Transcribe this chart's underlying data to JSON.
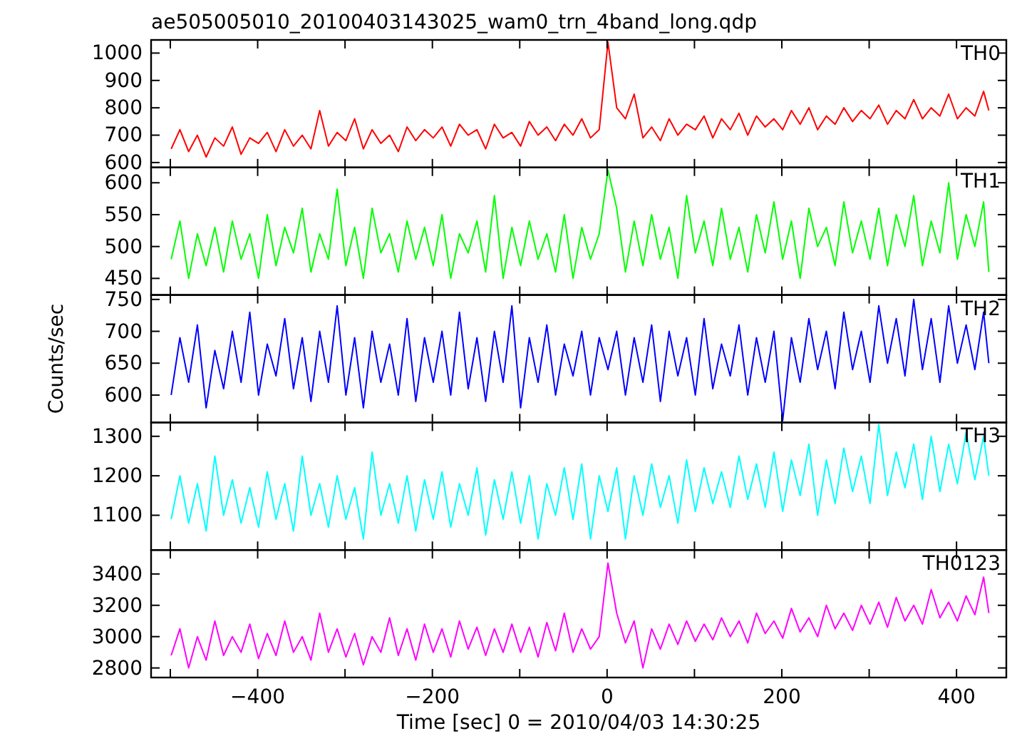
{
  "chart_data": [
    {
      "type": "line",
      "title": "ae505005010_20100403143025_wam0_trn_4band_long.qdp",
      "tick_labels": "y",
      "x": [
        -499,
        -489,
        -479,
        -469,
        -459,
        -449,
        -439,
        -429,
        -419,
        -409,
        -399,
        -389,
        -379,
        -369,
        -359,
        -349,
        -339,
        -329,
        -319,
        -309,
        -299,
        -289,
        -279,
        -269,
        -259,
        -249,
        -239,
        -229,
        -219,
        -209,
        -199,
        -189,
        -179,
        -169,
        -159,
        -149,
        -139,
        -129,
        -119,
        -109,
        -99,
        -89,
        -79,
        -69,
        -59,
        -49,
        -39,
        -29,
        -19,
        -9,
        1,
        11,
        21,
        31,
        41,
        51,
        61,
        71,
        81,
        91,
        101,
        111,
        121,
        131,
        141,
        151,
        161,
        171,
        181,
        191,
        201,
        211,
        221,
        231,
        241,
        251,
        261,
        271,
        281,
        291,
        301,
        311,
        321,
        331,
        341,
        351,
        361,
        371,
        381,
        391,
        401,
        411,
        421,
        431,
        437
      ],
      "xlim": [
        -522,
        457
      ],
      "xticks": [
        {
          "value": -500,
          "label": null
        },
        -400,
        {
          "value": -300,
          "label": null
        },
        -200,
        {
          "value": -100,
          "label": null
        },
        0,
        {
          "value": 100,
          "label": null
        },
        200,
        {
          "value": 300,
          "label": null
        },
        400
      ],
      "ylim": [
        582,
        1048
      ],
      "yticks": [
        600,
        700,
        800,
        900,
        1000
      ],
      "series": [
        {
          "name": "TH0",
          "color": "#ff0000",
          "values": [
            650,
            720,
            640,
            700,
            620,
            690,
            660,
            730,
            630,
            690,
            670,
            710,
            640,
            720,
            660,
            700,
            650,
            790,
            660,
            710,
            680,
            760,
            650,
            720,
            670,
            700,
            640,
            730,
            680,
            720,
            690,
            730,
            660,
            740,
            700,
            720,
            650,
            740,
            690,
            710,
            660,
            750,
            700,
            730,
            680,
            740,
            700,
            760,
            690,
            720,
            1040,
            800,
            760,
            850,
            690,
            730,
            680,
            760,
            700,
            740,
            720,
            770,
            690,
            760,
            720,
            780,
            700,
            770,
            730,
            760,
            720,
            790,
            740,
            800,
            720,
            770,
            740,
            800,
            750,
            790,
            760,
            810,
            740,
            790,
            760,
            830,
            760,
            800,
            770,
            850,
            760,
            800,
            770,
            860,
            790
          ]
        }
      ]
    },
    {
      "type": "line",
      "tick_labels": "y",
      "x": [
        -499,
        -489,
        -479,
        -469,
        -459,
        -449,
        -439,
        -429,
        -419,
        -409,
        -399,
        -389,
        -379,
        -369,
        -359,
        -349,
        -339,
        -329,
        -319,
        -309,
        -299,
        -289,
        -279,
        -269,
        -259,
        -249,
        -239,
        -229,
        -219,
        -209,
        -199,
        -189,
        -179,
        -169,
        -159,
        -149,
        -139,
        -129,
        -119,
        -109,
        -99,
        -89,
        -79,
        -69,
        -59,
        -49,
        -39,
        -29,
        -19,
        -9,
        1,
        11,
        21,
        31,
        41,
        51,
        61,
        71,
        81,
        91,
        101,
        111,
        121,
        131,
        141,
        151,
        161,
        171,
        181,
        191,
        201,
        211,
        221,
        231,
        241,
        251,
        261,
        271,
        281,
        291,
        301,
        311,
        321,
        331,
        341,
        351,
        361,
        371,
        381,
        391,
        401,
        411,
        421,
        431,
        437
      ],
      "xlim": [
        -522,
        457
      ],
      "xticks": [
        {
          "value": -500,
          "label": null
        },
        -400,
        {
          "value": -300,
          "label": null
        },
        -200,
        {
          "value": -100,
          "label": null
        },
        0,
        {
          "value": 100,
          "label": null
        },
        200,
        {
          "value": 300,
          "label": null
        },
        400
      ],
      "ylim": [
        424,
        624
      ],
      "yticks": [
        450,
        500,
        550,
        600
      ],
      "series": [
        {
          "name": "TH1",
          "color": "#00ff00",
          "values": [
            480,
            540,
            450,
            520,
            470,
            530,
            460,
            540,
            480,
            520,
            450,
            550,
            470,
            530,
            490,
            560,
            460,
            520,
            480,
            590,
            470,
            530,
            450,
            560,
            490,
            520,
            460,
            540,
            480,
            530,
            470,
            550,
            450,
            520,
            490,
            540,
            460,
            580,
            450,
            530,
            470,
            540,
            480,
            520,
            460,
            550,
            450,
            530,
            480,
            520,
            620,
            560,
            460,
            540,
            470,
            550,
            480,
            530,
            450,
            580,
            490,
            540,
            470,
            560,
            480,
            530,
            460,
            550,
            490,
            570,
            480,
            540,
            450,
            560,
            500,
            530,
            470,
            570,
            490,
            540,
            480,
            560,
            470,
            550,
            500,
            580,
            470,
            540,
            490,
            600,
            480,
            550,
            500,
            570,
            460
          ]
        }
      ]
    },
    {
      "type": "line",
      "tick_labels": "y",
      "ylabel": "Counts/sec",
      "x": [
        -499,
        -489,
        -479,
        -469,
        -459,
        -449,
        -439,
        -429,
        -419,
        -409,
        -399,
        -389,
        -379,
        -369,
        -359,
        -349,
        -339,
        -329,
        -319,
        -309,
        -299,
        -289,
        -279,
        -269,
        -259,
        -249,
        -239,
        -229,
        -219,
        -209,
        -199,
        -189,
        -179,
        -169,
        -159,
        -149,
        -139,
        -129,
        -119,
        -109,
        -99,
        -89,
        -79,
        -69,
        -59,
        -49,
        -39,
        -29,
        -19,
        -9,
        1,
        11,
        21,
        31,
        41,
        51,
        61,
        71,
        81,
        91,
        101,
        111,
        121,
        131,
        141,
        151,
        161,
        171,
        181,
        191,
        201,
        211,
        221,
        231,
        241,
        251,
        261,
        271,
        281,
        291,
        301,
        311,
        321,
        331,
        341,
        351,
        361,
        371,
        381,
        391,
        401,
        411,
        421,
        431,
        437
      ],
      "xlim": [
        -522,
        457
      ],
      "xticks": [
        {
          "value": -500,
          "label": null
        },
        -400,
        {
          "value": -300,
          "label": null
        },
        -200,
        {
          "value": -100,
          "label": null
        },
        0,
        {
          "value": 100,
          "label": null
        },
        200,
        {
          "value": 300,
          "label": null
        },
        400
      ],
      "ylim": [
        557,
        757
      ],
      "yticks": [
        600,
        650,
        700,
        750
      ],
      "series": [
        {
          "name": "TH2",
          "color": "#0000ff",
          "values": [
            600,
            690,
            620,
            710,
            580,
            670,
            610,
            700,
            620,
            730,
            600,
            680,
            630,
            720,
            610,
            690,
            590,
            700,
            620,
            740,
            600,
            690,
            580,
            700,
            620,
            680,
            600,
            720,
            590,
            690,
            620,
            700,
            600,
            730,
            610,
            690,
            590,
            700,
            620,
            740,
            580,
            690,
            620,
            710,
            600,
            680,
            630,
            700,
            600,
            690,
            640,
            700,
            600,
            690,
            620,
            710,
            590,
            700,
            630,
            690,
            600,
            720,
            610,
            680,
            630,
            710,
            600,
            690,
            620,
            700,
            560,
            690,
            620,
            720,
            640,
            700,
            610,
            730,
            640,
            700,
            620,
            740,
            650,
            720,
            630,
            750,
            640,
            720,
            620,
            740,
            650,
            710,
            640,
            730,
            650
          ]
        }
      ]
    },
    {
      "type": "line",
      "tick_labels": "y",
      "x": [
        -499,
        -489,
        -479,
        -469,
        -459,
        -449,
        -439,
        -429,
        -419,
        -409,
        -399,
        -389,
        -379,
        -369,
        -359,
        -349,
        -339,
        -329,
        -319,
        -309,
        -299,
        -289,
        -279,
        -269,
        -259,
        -249,
        -239,
        -229,
        -219,
        -209,
        -199,
        -189,
        -179,
        -169,
        -159,
        -149,
        -139,
        -129,
        -119,
        -109,
        -99,
        -89,
        -79,
        -69,
        -59,
        -49,
        -39,
        -29,
        -19,
        -9,
        1,
        11,
        21,
        31,
        41,
        51,
        61,
        71,
        81,
        91,
        101,
        111,
        121,
        131,
        141,
        151,
        161,
        171,
        181,
        191,
        201,
        211,
        221,
        231,
        241,
        251,
        261,
        271,
        281,
        291,
        301,
        311,
        321,
        331,
        341,
        351,
        361,
        371,
        381,
        391,
        401,
        411,
        421,
        431,
        437
      ],
      "xlim": [
        -522,
        457
      ],
      "xticks": [
        {
          "value": -500,
          "label": null
        },
        -400,
        {
          "value": -300,
          "label": null
        },
        -200,
        {
          "value": -100,
          "label": null
        },
        0,
        {
          "value": 100,
          "label": null
        },
        200,
        {
          "value": 300,
          "label": null
        },
        400
      ],
      "ylim": [
        1012,
        1335
      ],
      "yticks": [
        1100,
        1200,
        1300
      ],
      "series": [
        {
          "name": "TH3",
          "color": "#00ffff",
          "values": [
            1090,
            1200,
            1080,
            1180,
            1060,
            1250,
            1100,
            1190,
            1080,
            1170,
            1070,
            1210,
            1090,
            1180,
            1060,
            1250,
            1100,
            1180,
            1070,
            1200,
            1090,
            1170,
            1040,
            1260,
            1100,
            1180,
            1080,
            1200,
            1060,
            1190,
            1090,
            1210,
            1070,
            1180,
            1100,
            1220,
            1050,
            1190,
            1090,
            1210,
            1080,
            1200,
            1040,
            1180,
            1100,
            1220,
            1090,
            1230,
            1040,
            1200,
            1110,
            1220,
            1040,
            1200,
            1100,
            1230,
            1120,
            1200,
            1080,
            1240,
            1110,
            1220,
            1130,
            1210,
            1120,
            1250,
            1140,
            1230,
            1120,
            1260,
            1110,
            1240,
            1150,
            1280,
            1100,
            1240,
            1130,
            1270,
            1160,
            1250,
            1130,
            1330,
            1150,
            1260,
            1170,
            1280,
            1140,
            1300,
            1160,
            1280,
            1180,
            1310,
            1190,
            1300,
            1200
          ]
        }
      ]
    },
    {
      "type": "line",
      "xlabel": "Time [sec] 0 = 2010/04/03 14:30:25",
      "x": [
        -499,
        -489,
        -479,
        -469,
        -459,
        -449,
        -439,
        -429,
        -419,
        -409,
        -399,
        -389,
        -379,
        -369,
        -359,
        -349,
        -339,
        -329,
        -319,
        -309,
        -299,
        -289,
        -279,
        -269,
        -259,
        -249,
        -239,
        -229,
        -219,
        -209,
        -199,
        -189,
        -179,
        -169,
        -159,
        -149,
        -139,
        -129,
        -119,
        -109,
        -99,
        -89,
        -79,
        -69,
        -59,
        -49,
        -39,
        -29,
        -19,
        -9,
        1,
        11,
        21,
        31,
        41,
        51,
        61,
        71,
        81,
        91,
        101,
        111,
        121,
        131,
        141,
        151,
        161,
        171,
        181,
        191,
        201,
        211,
        221,
        231,
        241,
        251,
        261,
        271,
        281,
        291,
        301,
        311,
        321,
        331,
        341,
        351,
        361,
        371,
        381,
        391,
        401,
        411,
        421,
        431,
        437
      ],
      "xlim": [
        -522,
        457
      ],
      "xticks": [
        {
          "value": -500,
          "label": null
        },
        -400,
        {
          "value": -300,
          "label": null
        },
        -200,
        {
          "value": -100,
          "label": null
        },
        0,
        {
          "value": 100,
          "label": null
        },
        200,
        {
          "value": 300,
          "label": null
        },
        400
      ],
      "ylim": [
        2739,
        3553
      ],
      "yticks": [
        2800,
        3000,
        3200,
        3400
      ],
      "series": [
        {
          "name": "TH0123",
          "color": "#ff00ff",
          "values": [
            2880,
            3050,
            2800,
            3000,
            2850,
            3100,
            2880,
            3000,
            2900,
            3080,
            2860,
            3020,
            2880,
            3100,
            2900,
            3000,
            2850,
            3150,
            2900,
            3050,
            2870,
            3020,
            2820,
            3000,
            2900,
            3120,
            2880,
            3050,
            2850,
            3080,
            2900,
            3050,
            2870,
            3100,
            2920,
            3060,
            2880,
            3050,
            2900,
            3080,
            2900,
            3060,
            2870,
            3090,
            2910,
            3150,
            2900,
            3050,
            2920,
            3000,
            3470,
            3150,
            2960,
            3100,
            2800,
            3050,
            2920,
            3080,
            2950,
            3100,
            2970,
            3080,
            2980,
            3120,
            3000,
            3100,
            2960,
            3150,
            3020,
            3100,
            2990,
            3180,
            3030,
            3120,
            3000,
            3200,
            3050,
            3150,
            3040,
            3200,
            3080,
            3220,
            3060,
            3250,
            3100,
            3200,
            3080,
            3300,
            3120,
            3220,
            3100,
            3260,
            3140,
            3380,
            3150
          ]
        }
      ]
    }
  ]
}
